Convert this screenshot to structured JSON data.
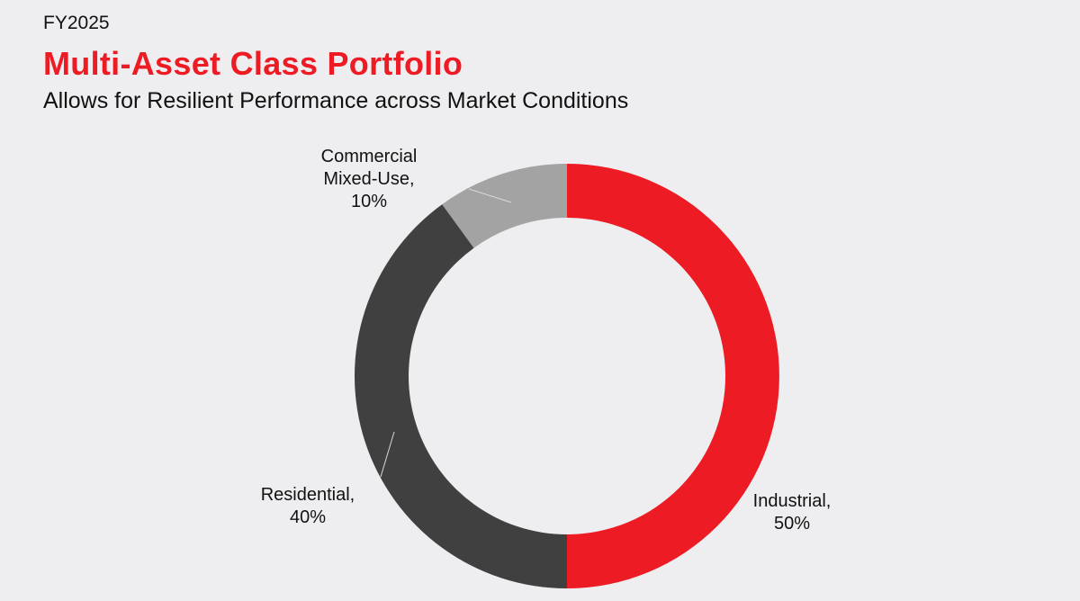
{
  "chart_data": {
    "type": "pie",
    "subtype": "donut",
    "kicker": "FY2025",
    "title": "Multi-Asset Class Portfolio",
    "subtitle": "Allows for Resilient Performance across Market Conditions",
    "slices": [
      {
        "name": "Industrial",
        "value": 50,
        "label_lines": [
          "Industrial,",
          "50%"
        ],
        "color": "#ed1c24"
      },
      {
        "name": "Residential",
        "value": 40,
        "label_lines": [
          "Residential,",
          "40%"
        ],
        "color": "#404040"
      },
      {
        "name": "Commercial Mixed-Use",
        "value": 10,
        "label_lines": [
          "Commercial",
          "Mixed-Use,",
          "10%"
        ],
        "color": "#a3a3a3"
      }
    ]
  }
}
